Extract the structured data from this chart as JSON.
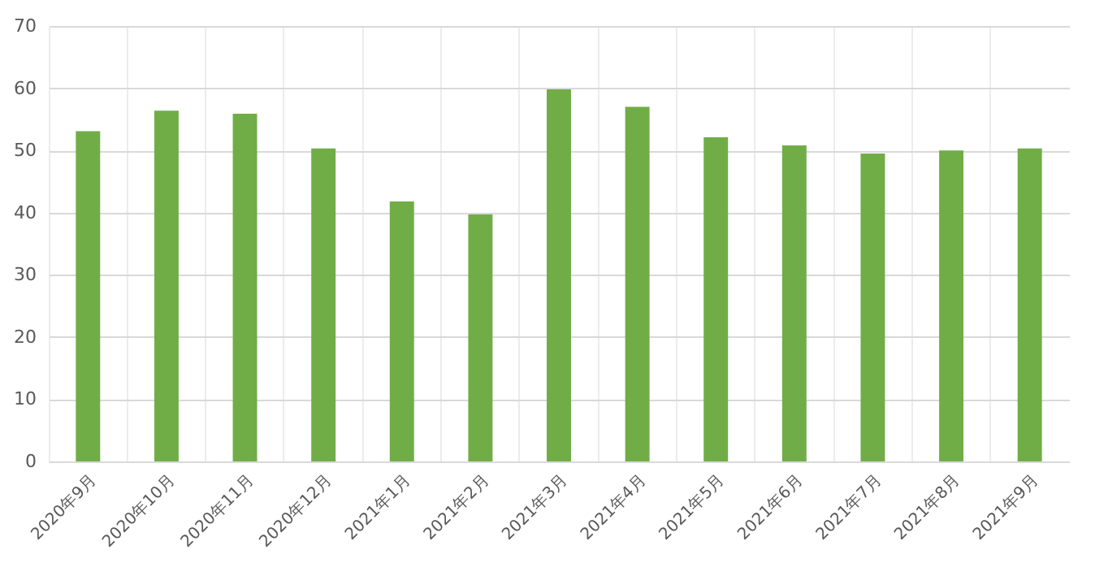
{
  "chart_data": {
    "type": "bar",
    "categories": [
      "2020年9月",
      "2020年10月",
      "2020年11月",
      "2020年12月",
      "2021年1月",
      "2021年2月",
      "2021年3月",
      "2021年4月",
      "2021年5月",
      "2021年6月",
      "2021年7月",
      "2021年8月",
      "2021年9月"
    ],
    "values": [
      53.1,
      56.4,
      55.9,
      50.3,
      41.8,
      39.7,
      59.8,
      57.0,
      52.1,
      50.8,
      49.5,
      50.0,
      50.3
    ],
    "color": "#70ad47",
    "ylim": [
      0,
      70
    ],
    "yticks": [
      0,
      10,
      20,
      30,
      40,
      50,
      60,
      70
    ],
    "grid": true
  }
}
